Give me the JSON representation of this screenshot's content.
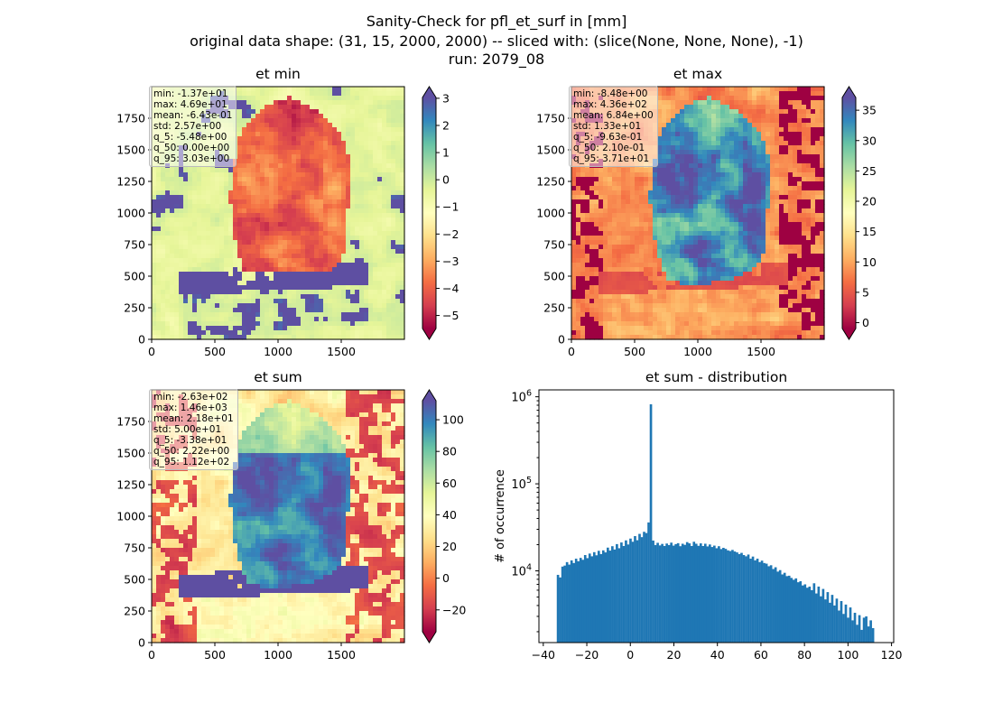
{
  "title": {
    "line1": "Sanity-Check for pfl_et_surf in [mm]",
    "line2": "original data shape: (31, 15, 2000, 2000) -- sliced with: (slice(None, None, None), -1)",
    "line3": "run: 2079_08"
  },
  "colormap_name": "Spectral",
  "colormap_colors": [
    "#9e0142",
    "#d53e4f",
    "#f46d43",
    "#fdae61",
    "#fee08b",
    "#ffffbf",
    "#e6f598",
    "#abdda4",
    "#66c2a5",
    "#3288bd",
    "#5e4fa2"
  ],
  "hist_color": "#1f77b4",
  "chart_data": [
    {
      "type": "heatmap",
      "title": "et min",
      "xlim": [
        0,
        2000
      ],
      "ylim": [
        0,
        2000
      ],
      "x_ticks": [
        0,
        500,
        1000,
        1500
      ],
      "y_ticks": [
        0,
        250,
        500,
        750,
        1000,
        1250,
        1500,
        1750
      ],
      "colorbar": {
        "vmin": -5.48,
        "vmax": 3.03,
        "ticks": [
          -5,
          -4,
          -3,
          -2,
          -1,
          0,
          1,
          2,
          3
        ],
        "extend": "both"
      },
      "stats": [
        "min: -1.37e+01",
        "max: 4.69e+01",
        "mean: -6.43e-01",
        "std: 2.57e+00",
        "q_5: -5.48e+00",
        "q_50: 0.00e+00",
        "q_95: 3.03e+00"
      ]
    },
    {
      "type": "heatmap",
      "title": "et max",
      "xlim": [
        0,
        2000
      ],
      "ylim": [
        0,
        2000
      ],
      "x_ticks": [
        0,
        500,
        1000,
        1500
      ],
      "y_ticks": [
        0,
        250,
        500,
        750,
        1000,
        1250,
        1500,
        1750
      ],
      "colorbar": {
        "vmin": -0.963,
        "vmax": 37.1,
        "ticks": [
          0,
          5,
          10,
          15,
          20,
          25,
          30,
          35
        ],
        "extend": "both"
      },
      "stats": [
        "min: -8.48e+00",
        "max: 4.36e+02",
        "mean: 6.84e+00",
        "std: 1.33e+01",
        "q_5: -9.63e-01",
        "q_50: 2.10e-01",
        "q_95: 3.71e+01"
      ]
    },
    {
      "type": "heatmap",
      "title": "et sum",
      "xlim": [
        0,
        2000
      ],
      "ylim": [
        0,
        2000
      ],
      "x_ticks": [
        0,
        500,
        1000,
        1500
      ],
      "y_ticks": [
        0,
        250,
        500,
        750,
        1000,
        1250,
        1500,
        1750
      ],
      "colorbar": {
        "vmin": -33.8,
        "vmax": 112,
        "ticks": [
          -20,
          0,
          20,
          40,
          60,
          80,
          100
        ],
        "extend": "both"
      },
      "stats": [
        "min: -2.63e+02",
        "max: 1.46e+03",
        "mean: 2.18e+01",
        "std: 5.00e+01",
        "q_5: -3.38e+01",
        "q_50: 2.22e+00",
        "q_95: 1.12e+02"
      ]
    },
    {
      "type": "bar",
      "title": "et sum - distribution",
      "ylabel": "# of occurrence",
      "yscale": "log",
      "xlim": [
        -42,
        121
      ],
      "ylim": [
        1500,
        1200000
      ],
      "x_ticks": [
        -40,
        -20,
        0,
        20,
        40,
        60,
        80,
        100,
        120
      ],
      "y_ticks": [
        {
          "value": 10000,
          "label": "10",
          "exp": "4"
        },
        {
          "value": 100000,
          "label": "10",
          "exp": "5"
        },
        {
          "value": 1000000,
          "label": "10",
          "exp": "6"
        }
      ],
      "bin_range": [
        -33.8,
        112
      ],
      "values": [
        9000,
        8400,
        11200,
        11500,
        12600,
        11800,
        13200,
        12300,
        13800,
        12900,
        14100,
        13400,
        15200,
        14000,
        15800,
        14700,
        16400,
        15100,
        17000,
        15600,
        17200,
        16300,
        18500,
        17100,
        19200,
        17600,
        20300,
        18200,
        21200,
        19300,
        22400,
        20100,
        23500,
        21600,
        25100,
        22500,
        26600,
        24400,
        28100,
        27200,
        36000,
        820000,
        22300,
        19800,
        21000,
        19600,
        20400,
        19300,
        20600,
        19800,
        21100,
        19500,
        20300,
        20800,
        19200,
        20500,
        19900,
        21400,
        20700,
        19300,
        21600,
        20500,
        19400,
        20700,
        19300,
        20500,
        19100,
        20100,
        18800,
        19500,
        18200,
        19200,
        17800,
        18400,
        17900,
        17200,
        16900,
        17400,
        16700,
        16300,
        15600,
        16100,
        15200,
        14700,
        15400,
        13800,
        14600,
        13200,
        13800,
        12600,
        13100,
        12300,
        12100,
        11300,
        11600,
        10500,
        11000,
        9800,
        10200,
        9100,
        9500,
        8700,
        8800,
        8300,
        7900,
        8200,
        7400,
        7600,
        6800,
        7000,
        6400,
        6600,
        6000,
        7200,
        5500,
        6600,
        5100,
        6200,
        4700,
        5700,
        4300,
        5300,
        4000,
        4800,
        3500,
        4500,
        3200,
        4100,
        2900,
        3800,
        2700,
        3300,
        2400,
        3100,
        2100,
        2900,
        3000,
        2300,
        2700,
        2200
      ]
    }
  ]
}
